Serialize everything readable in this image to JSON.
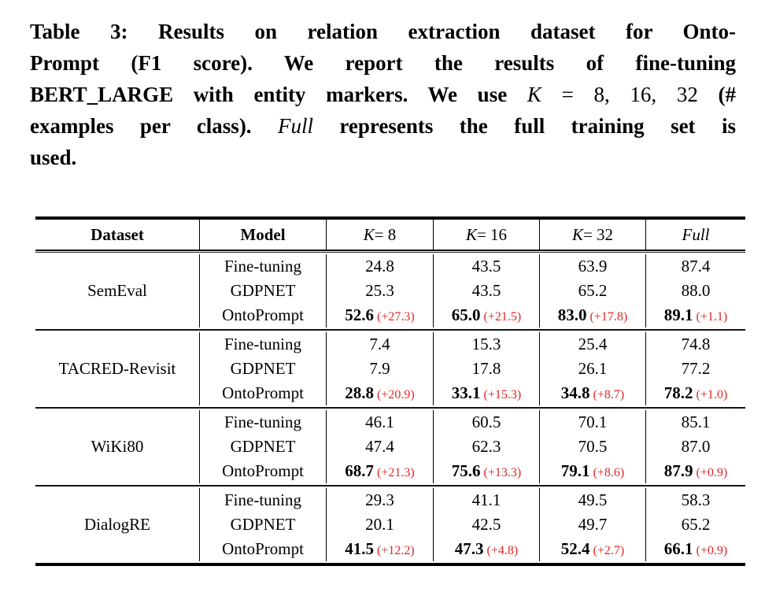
{
  "caption": {
    "l1": "Table 3: Results on relation extraction dataset for Onto-",
    "l2": "Prompt (F1 score). We report the results of fine-tuning",
    "l3a": "BERT_LARGE with entity markers. We use ",
    "l3k": "K",
    "l3b": " = 8, 16, 32 ",
    "l3c": "(#",
    "l4a": "examples per class). ",
    "l4full": "Full",
    "l4b": " represents the full training set is",
    "l5": "used."
  },
  "colors": {
    "gain_red": "#e62525",
    "text": "#000000"
  },
  "table": {
    "header": {
      "dataset": "Dataset",
      "model": "Model",
      "k_label": "K",
      "k8": " = 8",
      "k16": " = 16",
      "k32": " = 32",
      "full": "Full"
    },
    "groups": [
      {
        "dataset": "SemEval",
        "rows": [
          {
            "model": "Fine-tuning",
            "v0": "24.8",
            "v1": "43.5",
            "v2": "63.9",
            "v3": "87.4"
          },
          {
            "model": "GDPNET",
            "v0": "25.3",
            "v1": "43.5",
            "v2": "65.2",
            "v3": "88.0"
          },
          {
            "model": "OntoPrompt",
            "v0": "52.6",
            "g0": "(+27.3)",
            "v1": "65.0",
            "g1": "(+21.5)",
            "v2": "83.0",
            "g2": "(+17.8)",
            "v3": "89.1",
            "g3": "(+1.1)"
          }
        ]
      },
      {
        "dataset": "TACRED-Revisit",
        "rows": [
          {
            "model": "Fine-tuning",
            "v0": "7.4",
            "v1": "15.3",
            "v2": "25.4",
            "v3": "74.8"
          },
          {
            "model": "GDPNET",
            "v0": "7.9",
            "v1": "17.8",
            "v2": "26.1",
            "v3": "77.2"
          },
          {
            "model": "OntoPrompt",
            "v0": "28.8",
            "g0": "(+20.9)",
            "v1": "33.1",
            "g1": "(+15.3)",
            "v2": "34.8",
            "g2": "(+8.7)",
            "v3": "78.2",
            "g3": "(+1.0)"
          }
        ]
      },
      {
        "dataset": "WiKi80",
        "rows": [
          {
            "model": "Fine-tuning",
            "v0": "46.1",
            "v1": "60.5",
            "v2": "70.1",
            "v3": "85.1"
          },
          {
            "model": "GDPNET",
            "v0": "47.4",
            "v1": "62.3",
            "v2": "70.5",
            "v3": "87.0"
          },
          {
            "model": "OntoPrompt",
            "v0": "68.7",
            "g0": "(+21.3)",
            "v1": "75.6",
            "g1": "(+13.3)",
            "v2": "79.1",
            "g2": "(+8.6)",
            "v3": "87.9",
            "g3": "(+0.9)"
          }
        ]
      },
      {
        "dataset": "DialogRE",
        "rows": [
          {
            "model": "Fine-tuning",
            "v0": "29.3",
            "v1": "41.1",
            "v2": "49.5",
            "v3": "58.3"
          },
          {
            "model": "GDPNET",
            "v0": "20.1",
            "v1": "42.5",
            "v2": "49.7",
            "v3": "65.2"
          },
          {
            "model": "OntoPrompt",
            "v0": "41.5",
            "g0": "(+12.2)",
            "v1": "47.3",
            "g1": "(+4.8)",
            "v2": "52.4",
            "g2": "(+2.7)",
            "v3": "66.1",
            "g3": "(+0.9)"
          }
        ]
      }
    ]
  }
}
